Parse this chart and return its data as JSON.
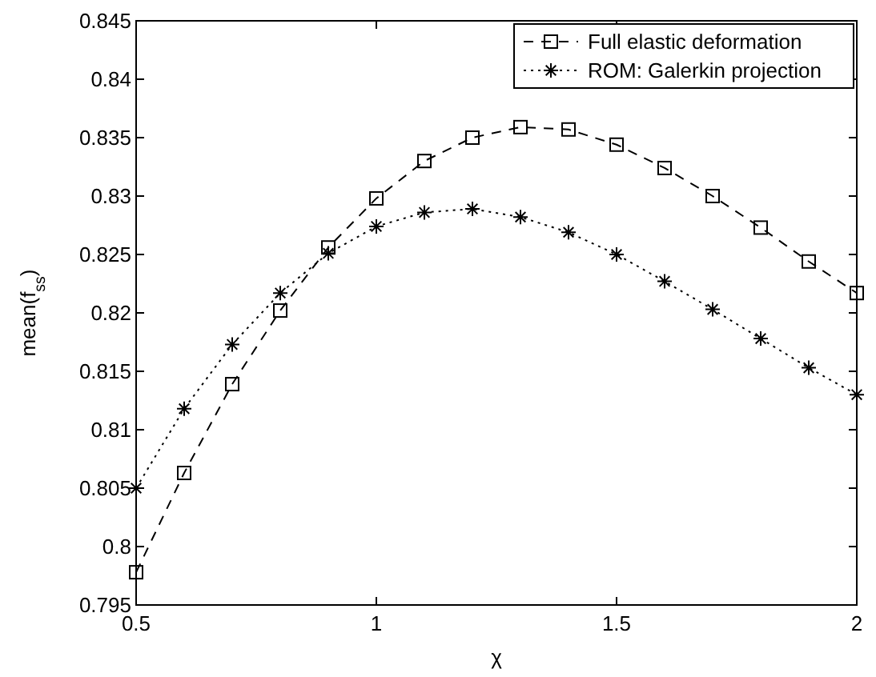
{
  "chart_data": {
    "type": "line",
    "xlabel": "χ",
    "ylabel": "mean(f$_{ss}$)",
    "x": [
      0.5,
      0.6,
      0.7,
      0.8,
      0.9,
      1.0,
      1.1,
      1.2,
      1.3,
      1.4,
      1.5,
      1.6,
      1.7,
      1.8,
      1.9,
      2.0
    ],
    "series": [
      {
        "name": "Full elastic deformation",
        "color": "#000000",
        "marker": "square",
        "line_style": "dashed",
        "values": [
          0.7978,
          0.8063,
          0.8139,
          0.8202,
          0.8256,
          0.8298,
          0.833,
          0.835,
          0.8359,
          0.8357,
          0.8344,
          0.8324,
          0.83,
          0.8273,
          0.8244,
          0.8217
        ]
      },
      {
        "name": "ROM: Galerkin projection",
        "color": "#000000",
        "marker": "cross",
        "line_style": "dotted",
        "values": [
          0.805,
          0.8118,
          0.8173,
          0.8217,
          0.8251,
          0.8274,
          0.8286,
          0.8289,
          0.8282,
          0.8269,
          0.825,
          0.8227,
          0.8203,
          0.8178,
          0.8153,
          0.813
        ]
      }
    ],
    "xlim": [
      0.5,
      2
    ],
    "xticks": [
      0.5,
      1,
      1.5,
      2
    ],
    "ylim": [
      0.795,
      0.845
    ],
    "yticks": [
      0.795,
      0.8,
      0.805,
      0.81,
      0.815,
      0.82,
      0.825,
      0.83,
      0.835,
      0.84,
      0.845
    ],
    "grid": false,
    "legend": "top right"
  }
}
